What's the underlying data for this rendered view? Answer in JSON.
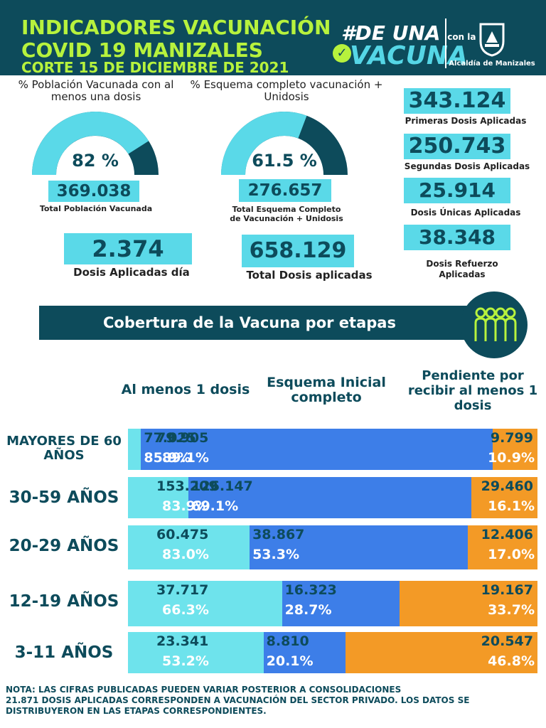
{
  "header": {
    "title_line1": "INDICADORES VACUNACIÓN",
    "title_line2": "COVID 19 MANIZALES",
    "title_line3": "CORTE 15 DE DICIEMBRE  DE 2021",
    "logo_line1": "#DE UNA",
    "logo_small": "con la",
    "logo_line2": "VACUNA",
    "alcaldia": "Alcaldía de Manizales",
    "colors": {
      "header_bg": "#0d4b5b",
      "title": "#b7f23d"
    }
  },
  "gauges": [
    {
      "label": "% Población Vacunada con al menos una dosis",
      "percent_text": "82 %",
      "fraction": 0.82,
      "box_value": "369.038",
      "box_label": "Total Población Vacunada"
    },
    {
      "label": "% Esquema completo vacunación + Unidosis",
      "percent_text": "61.5 %",
      "fraction": 0.615,
      "box_value": "276.657",
      "box_label": "Total Esquema Completo de Vacunación + Unidosis"
    }
  ],
  "totals": [
    {
      "value": "2.374",
      "label": "Dosis Aplicadas día"
    },
    {
      "value": "658.129",
      "label": "Total Dosis aplicadas"
    }
  ],
  "doses": [
    {
      "value": "343.124",
      "label": "Primeras Dosis Aplicadas"
    },
    {
      "value": "250.743",
      "label": "Segundas Dosis Aplicadas"
    },
    {
      "value": "25.914",
      "label": "Dosis Únicas Aplicadas"
    },
    {
      "value": "38.348",
      "label": "Dosis Refuerzo Aplicadas"
    }
  ],
  "banner": {
    "title": "Cobertura de la Vacuna por etapas",
    "icon": "people-group-icon"
  },
  "chart_data": {
    "type": "bar",
    "orientation": "horizontal",
    "stacked": true,
    "columns": [
      "Al menos 1 dosis",
      "Esquema Inicial completo",
      "Pendiente por recibir al menos 1 dosis"
    ],
    "colors": {
      "primera": "#6ee3ec",
      "esquema": "#3d7ee8",
      "pendiente": "#f39a26"
    },
    "rows": [
      {
        "label": "MAYORES DE 60 AÑOS",
        "primera_count": "79.905",
        "primera_pct": "89.1%",
        "primera_value": 89.1,
        "esquema_count": "77.025",
        "esquema_pct": "85.9%",
        "esquema_value": 85.9,
        "pendiente_count": "9.799",
        "pendiente_pct": "10.9%",
        "pendiente_value": 10.9
      },
      {
        "label": "30-59 AÑOS",
        "primera_count": "153.209",
        "primera_pct": "83.9%",
        "primera_value": 83.9,
        "esquema_count": "126.147",
        "esquema_pct": "69.1%",
        "esquema_value": 69.1,
        "pendiente_count": "29.460",
        "pendiente_pct": "16.1%",
        "pendiente_value": 16.1
      },
      {
        "label": "20-29 AÑOS",
        "primera_count": "60.475",
        "primera_pct": "83.0%",
        "primera_value": 83.0,
        "esquema_count": "38.867",
        "esquema_pct": "53.3%",
        "esquema_value": 53.3,
        "pendiente_count": "12.406",
        "pendiente_pct": "17.0%",
        "pendiente_value": 17.0
      },
      {
        "label": "12-19 AÑOS",
        "primera_count": "37.717",
        "primera_pct": "66.3%",
        "primera_value": 66.3,
        "esquema_count": "16.323",
        "esquema_pct": "28.7%",
        "esquema_value": 28.7,
        "pendiente_count": "19.167",
        "pendiente_pct": "33.7%",
        "pendiente_value": 33.7
      },
      {
        "label": "3-11 AÑOS",
        "primera_count": "23.341",
        "primera_pct": "53.2%",
        "primera_value": 53.2,
        "esquema_count": "8.810",
        "esquema_pct": "20.1%",
        "esquema_value": 20.1,
        "pendiente_count": "20.547",
        "pendiente_pct": "46.8%",
        "pendiente_value": 46.8
      }
    ]
  },
  "note": {
    "line1": "NOTA: LAS CIFRAS PUBLICADAS PUEDEN VARIAR POSTERIOR A CONSOLIDACIONES",
    "line2": "21.871 DOSIS APLICADAS CORRESPONDEN A VACUNACIÓN  DEL SECTOR PRIVADO. LOS DATOS SE DISTRIBUYERON EN LAS ETAPAS CORRESPONDIENTES."
  }
}
